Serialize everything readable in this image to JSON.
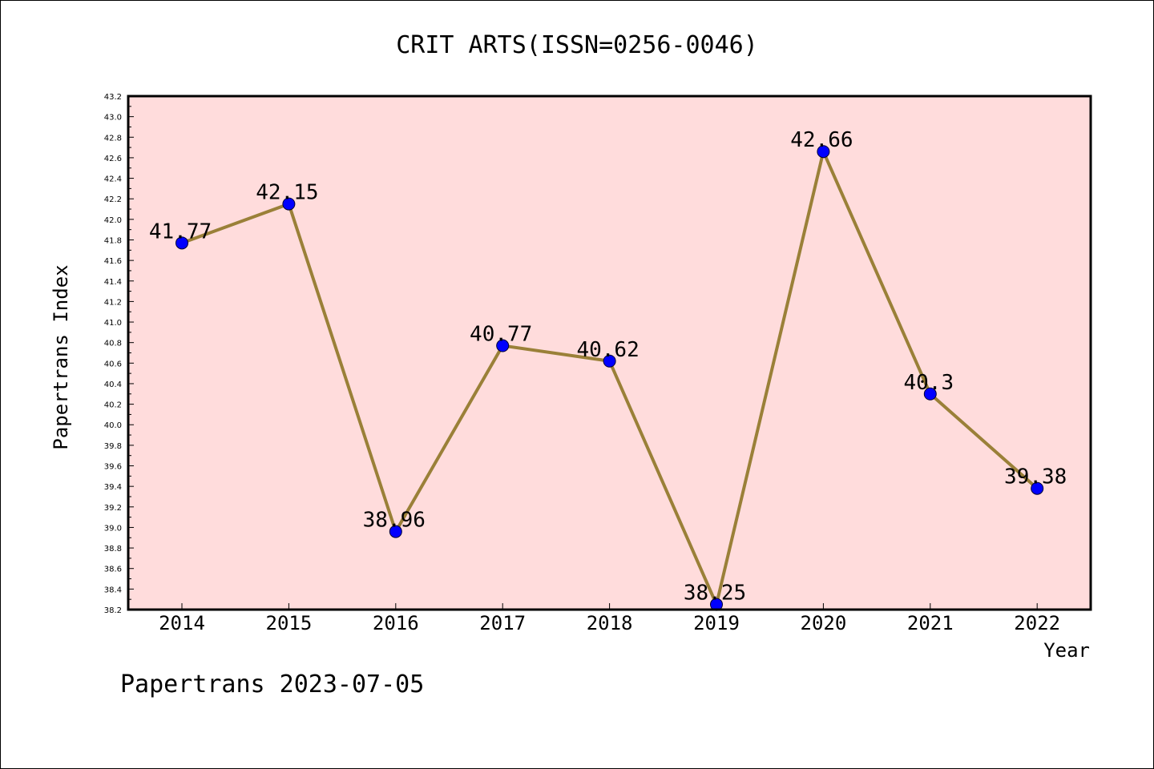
{
  "chart_data": {
    "type": "line",
    "title": "CRIT ARTS(ISSN=0256-0046)",
    "xlabel": "Year",
    "ylabel": "Papertrans Index",
    "categories": [
      "2014",
      "2015",
      "2016",
      "2017",
      "2018",
      "2019",
      "2020",
      "2021",
      "2022"
    ],
    "series": [
      {
        "values": [
          41.77,
          42.15,
          38.96,
          40.77,
          40.62,
          38.25,
          42.66,
          40.3,
          39.38
        ],
        "labels": [
          "41.77",
          "42.15",
          "38.96",
          "40.77",
          "40.62",
          "38.25",
          "42.66",
          "40.3",
          "39.38"
        ],
        "line_color": "#9a8038",
        "marker_color": "#0000ff"
      }
    ],
    "ylim": [
      38.2,
      43.2
    ],
    "yticks": [
      "38.2",
      "38.4",
      "38.6",
      "38.8",
      "39.0",
      "39.2",
      "39.4",
      "39.6",
      "39.8",
      "40.0",
      "40.2",
      "40.4",
      "40.6",
      "40.8",
      "41.0",
      "41.2",
      "41.4",
      "41.6",
      "41.8",
      "42.0",
      "42.2",
      "42.4",
      "42.6",
      "42.8",
      "43.0",
      "43.2"
    ],
    "plot_background": "#ffdcdc",
    "grid": false
  },
  "footer": "Papertrans 2023-07-05"
}
